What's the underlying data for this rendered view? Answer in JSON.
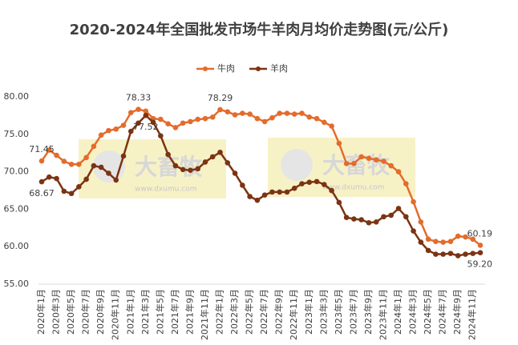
{
  "chart_data": {
    "type": "line",
    "title": "2020-2024年全国批发市场牛羊肉月均价走势图(元/公斤)",
    "watermark": {
      "brand": "大畜牧",
      "url": "www.dxumu.com"
    },
    "categories": [
      "2020年1月",
      null,
      "2020年3月",
      null,
      "2020年5月",
      null,
      "2020年7月",
      null,
      "2020年9月",
      null,
      "2020年11月",
      null,
      "2021年1月",
      null,
      "2021年3月",
      null,
      "2021年5月",
      null,
      "2021年7月",
      null,
      "2021年9月",
      null,
      "2021年11月",
      null,
      "2022年1月",
      null,
      "2022年3月",
      null,
      "2022年5月",
      null,
      "2022年7月",
      null,
      "2022年9月",
      null,
      "2022年11月",
      null,
      "2023年1月",
      null,
      "2023年3月",
      null,
      "2023年5月",
      null,
      "2023年7月",
      null,
      "2023年9月",
      null,
      "2023年11月",
      null,
      "2024年1月",
      null,
      "2024年3月",
      null,
      "2024年5月",
      null,
      "2024年7月",
      null,
      "2024年9月",
      null,
      "2024年11月",
      null
    ],
    "series": [
      {
        "name": "牛肉",
        "color": "#e36c2c",
        "values": [
          71.45,
          72.9,
          72.2,
          71.4,
          71.0,
          71.0,
          71.9,
          73.4,
          74.9,
          75.5,
          75.7,
          76.2,
          77.9,
          78.33,
          78.1,
          77.1,
          77.0,
          76.4,
          75.9,
          76.5,
          76.7,
          77.0,
          77.1,
          77.3,
          78.29,
          78.0,
          77.6,
          77.8,
          77.7,
          77.1,
          76.7,
          77.2,
          77.8,
          77.8,
          77.7,
          77.8,
          77.3,
          77.1,
          76.6,
          76.1,
          73.8,
          71.1,
          71.1,
          72.0,
          71.8,
          71.6,
          71.4,
          70.8,
          70.0,
          68.4,
          66.0,
          63.3,
          61.0,
          60.7,
          60.6,
          60.7,
          61.4,
          61.3,
          61.0,
          60.19
        ],
        "value_labels": [
          "71.45",
          null,
          null,
          null,
          null,
          null,
          null,
          null,
          null,
          null,
          null,
          null,
          null,
          "78.33",
          null,
          null,
          null,
          null,
          null,
          null,
          null,
          null,
          null,
          null,
          "78.29",
          null,
          null,
          null,
          null,
          null,
          null,
          null,
          null,
          null,
          null,
          null,
          null,
          null,
          null,
          null,
          null,
          null,
          null,
          null,
          null,
          null,
          null,
          null,
          null,
          null,
          null,
          null,
          null,
          null,
          null,
          null,
          null,
          null,
          null,
          "60.19"
        ]
      },
      {
        "name": "羊肉",
        "color": "#7b3413",
        "values": [
          68.67,
          69.3,
          69.1,
          67.4,
          67.1,
          68.0,
          69.0,
          70.8,
          70.6,
          69.8,
          68.9,
          72.1,
          75.4,
          76.5,
          77.52,
          76.6,
          74.8,
          72.3,
          70.8,
          70.3,
          70.2,
          70.4,
          71.3,
          72.0,
          72.6,
          71.2,
          69.8,
          68.2,
          66.7,
          66.2,
          66.9,
          67.3,
          67.3,
          67.3,
          67.8,
          68.4,
          68.6,
          68.7,
          68.3,
          67.5,
          65.9,
          63.9,
          63.7,
          63.6,
          63.2,
          63.3,
          64.0,
          64.2,
          65.1,
          64.0,
          62.1,
          60.6,
          59.5,
          59.0,
          59.0,
          59.1,
          58.8,
          59.0,
          59.1,
          59.2
        ],
        "value_labels": [
          "68.67",
          null,
          null,
          null,
          null,
          null,
          null,
          null,
          null,
          null,
          null,
          null,
          null,
          null,
          "77.52",
          null,
          null,
          null,
          null,
          null,
          null,
          null,
          null,
          null,
          null,
          null,
          null,
          null,
          null,
          null,
          null,
          null,
          null,
          null,
          null,
          null,
          null,
          null,
          null,
          null,
          null,
          null,
          null,
          null,
          null,
          null,
          null,
          null,
          null,
          null,
          null,
          null,
          null,
          null,
          null,
          null,
          null,
          null,
          null,
          "59.20"
        ]
      }
    ],
    "ylim": [
      55,
      80
    ],
    "yticks": [
      {
        "value": 55,
        "label": "55.00"
      },
      {
        "value": 60,
        "label": "60.00"
      },
      {
        "value": 65,
        "label": "65.00"
      },
      {
        "value": 70,
        "label": "70.00"
      },
      {
        "value": 75,
        "label": "75.00"
      },
      {
        "value": 80,
        "label": "80.00"
      }
    ],
    "grid": false
  }
}
